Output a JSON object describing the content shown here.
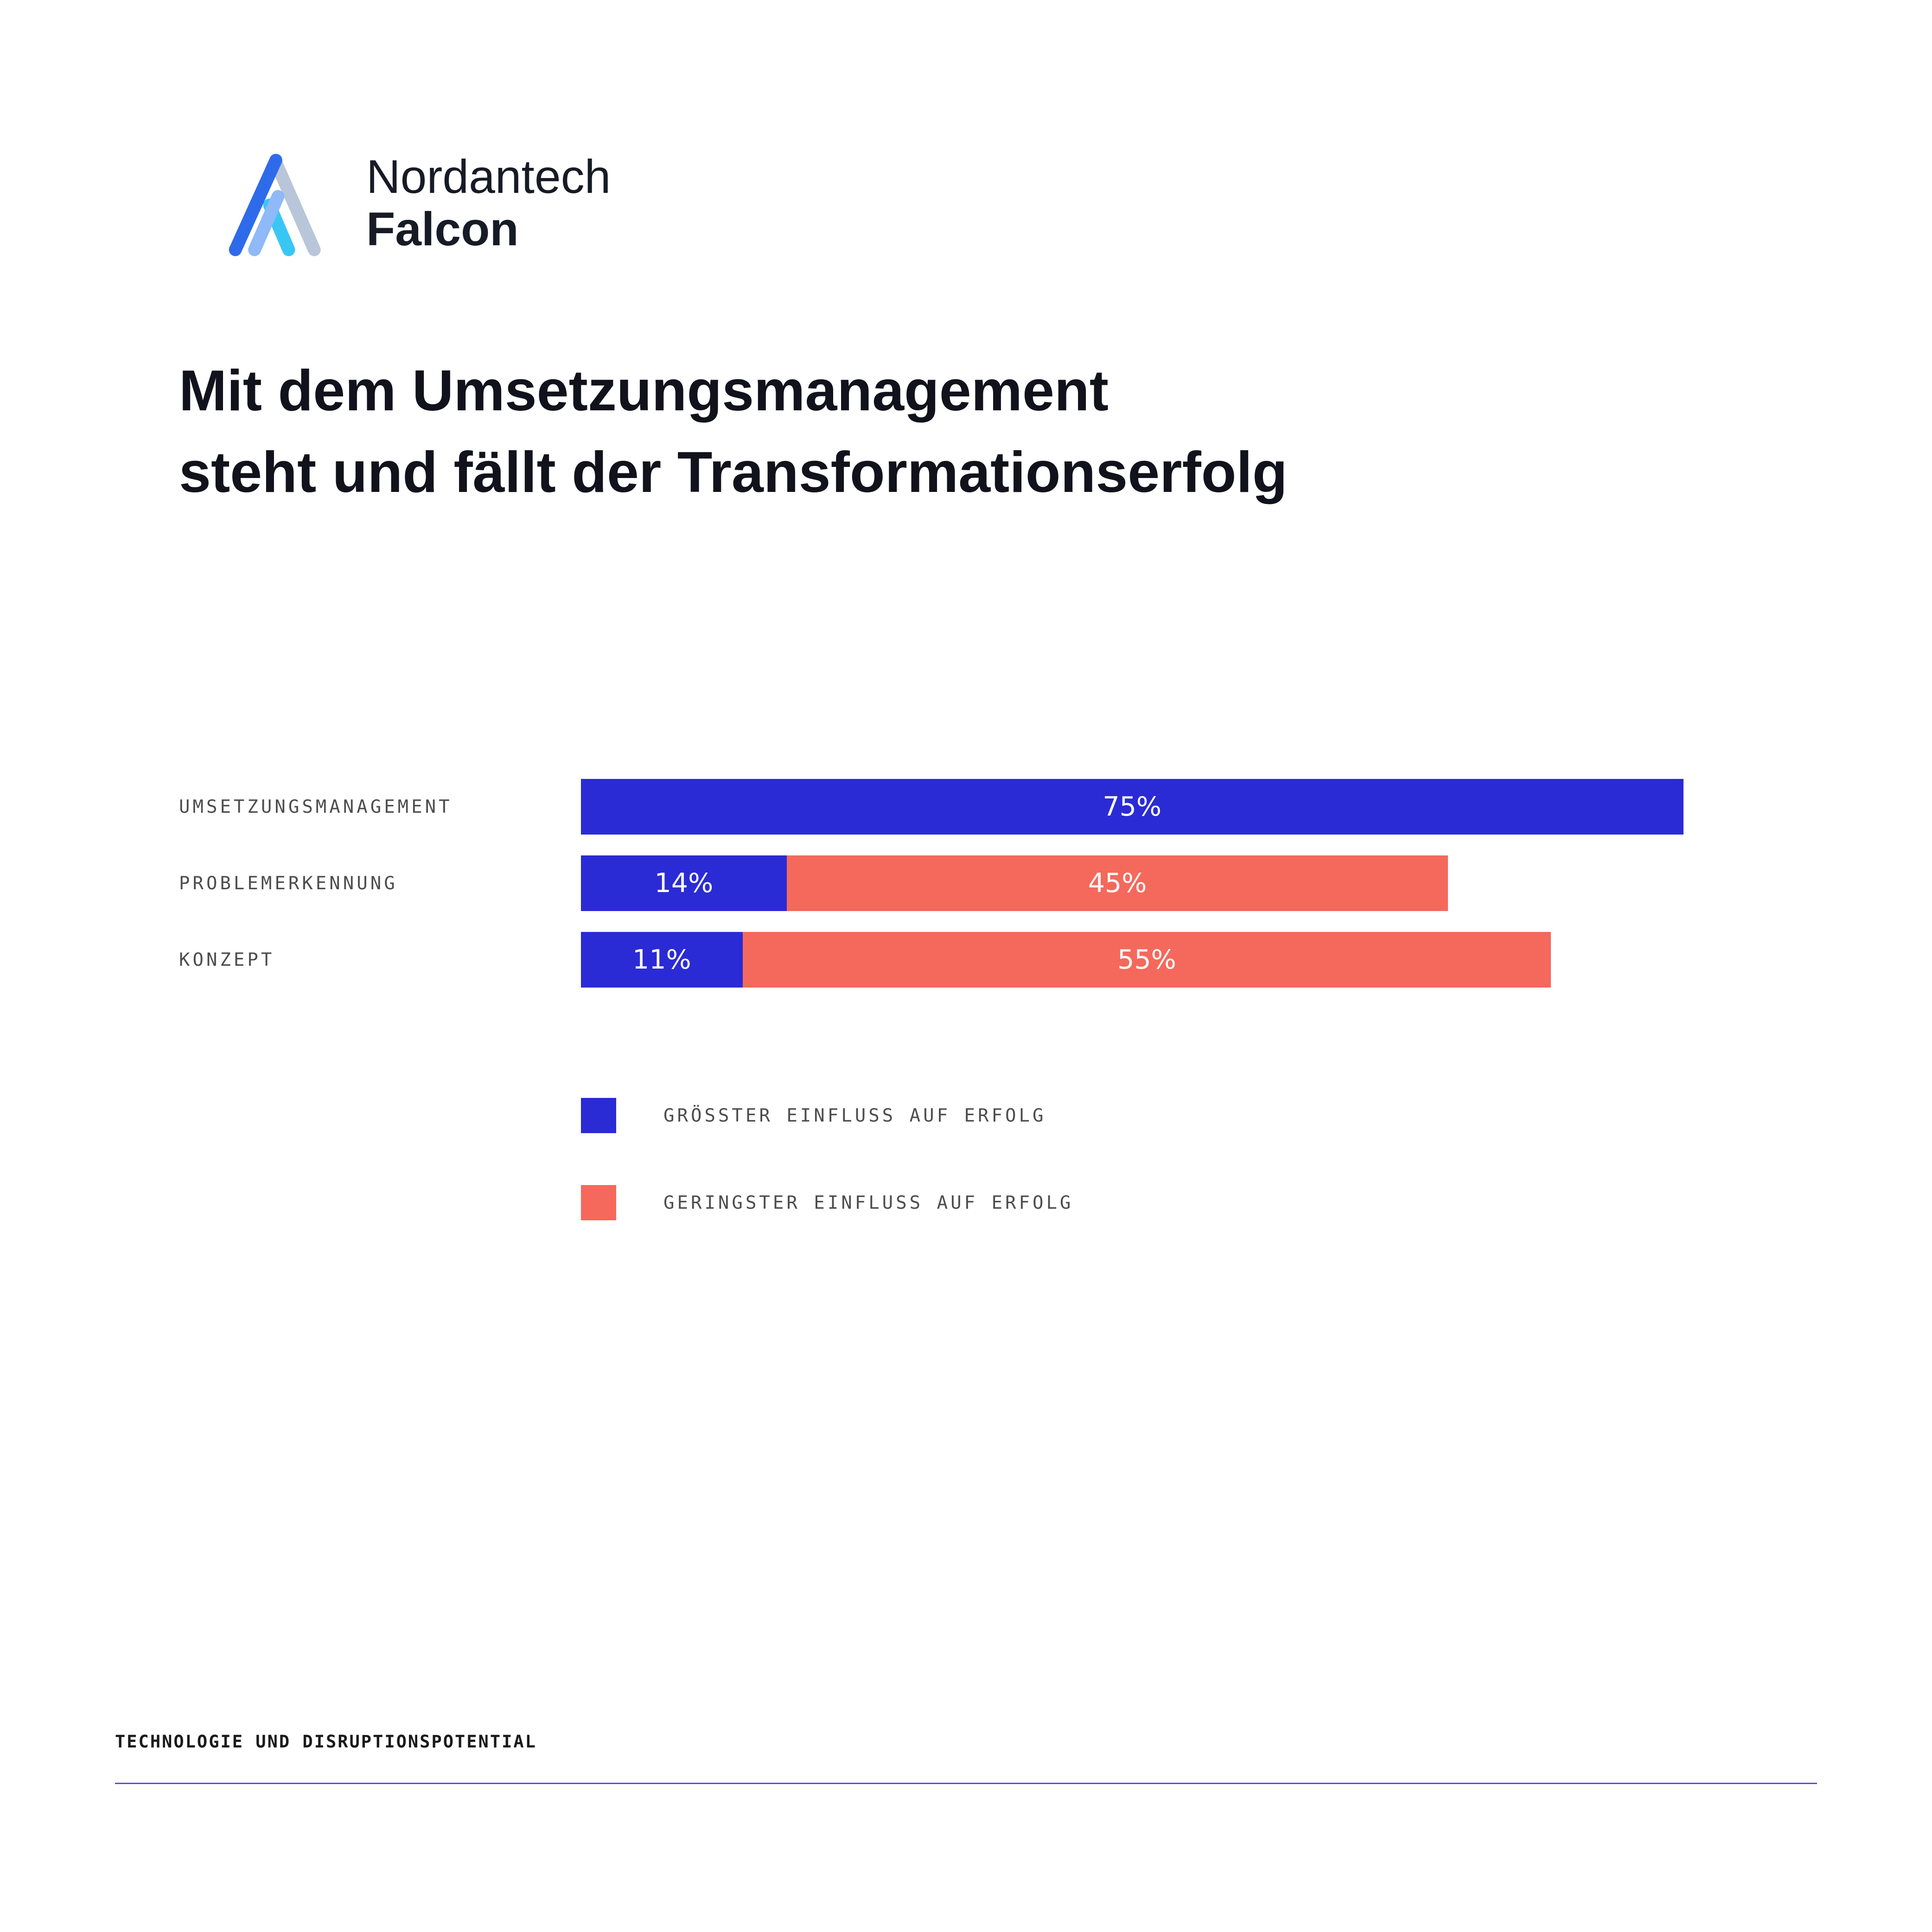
{
  "logo": {
    "brand": "Nordantech",
    "product": "Falcon"
  },
  "title": {
    "line1": "Mit dem Umsetzungsmanagement",
    "line2": "steht und fällt der Transformationserfolg"
  },
  "chart_data": {
    "type": "bar",
    "orientation": "horizontal",
    "stacked": true,
    "categories": [
      "UMSETZUNGSMANAGEMENT",
      "PROBLEMERKENNUNG",
      "KONZEPT"
    ],
    "series": [
      {
        "name": "GRÖSSTER EINFLUSS AUF ERFOLG",
        "color": "#2b2bd5",
        "values": [
          75,
          14,
          11
        ]
      },
      {
        "name": "GERINGSTER EINFLUSS AUF ERFOLG",
        "color": "#f4695c",
        "values": [
          0,
          45,
          55
        ]
      }
    ],
    "value_labels": [
      [
        "75%"
      ],
      [
        "14%",
        "45%"
      ],
      [
        "11%",
        "55%"
      ]
    ],
    "xlim": [
      0,
      80
    ],
    "grid": false,
    "legend_position": "below-left"
  },
  "legend": [
    {
      "label": "GRÖSSTER EINFLUSS AUF ERFOLG",
      "color": "#2b2bd5"
    },
    {
      "label": "GERINGSTER EINFLUSS AUF ERFOLG",
      "color": "#f4695c"
    }
  ],
  "footer": {
    "text": "TECHNOLOGIE UND DISRUPTIONSPOTENTIAL",
    "line_color": "#5a50d2"
  },
  "colors": {
    "primary": "#2b2bd5",
    "secondary": "#f4695c",
    "text_dark": "#12121c",
    "label_gray": "#4d4d4d"
  }
}
